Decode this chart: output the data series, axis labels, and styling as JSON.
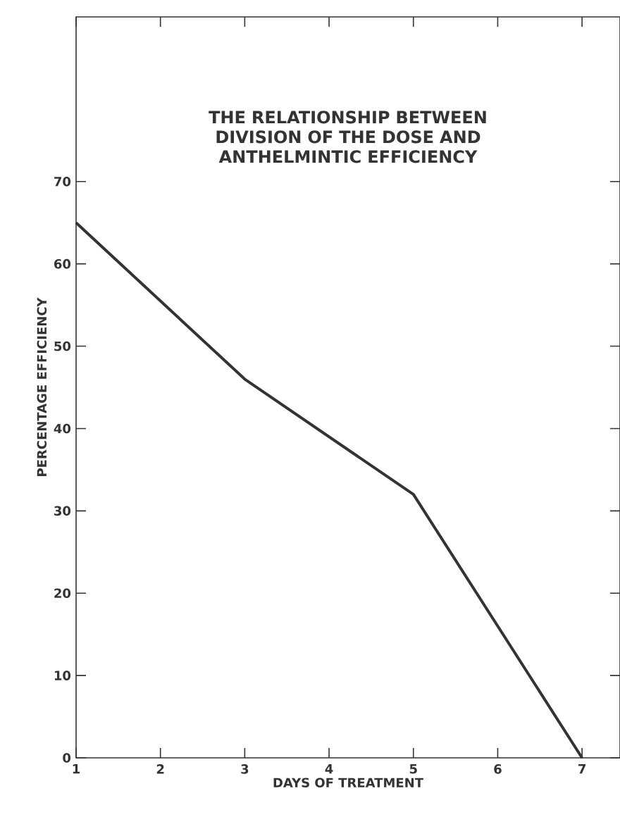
{
  "chart_data": {
    "type": "line",
    "title": "THE RELATIONSHIP BETWEEN DIVISION OF THE DOSE AND ANTHELMINTIC EFFICIENCY",
    "xlabel": "DAYS OF TREATMENT",
    "ylabel": "PERCENTAGE EFFICIENCY",
    "x": [
      1,
      3,
      5,
      7
    ],
    "values": [
      65,
      46,
      32,
      0
    ],
    "color": "#333333",
    "xlim": [
      1,
      7.45
    ],
    "ylim": [
      0,
      90
    ],
    "xticks": [
      1,
      2,
      3,
      4,
      5,
      6,
      7
    ],
    "yticks": [
      0,
      10,
      20,
      30,
      40,
      50,
      60,
      70
    ],
    "marker": "none",
    "line_style": "solid"
  }
}
